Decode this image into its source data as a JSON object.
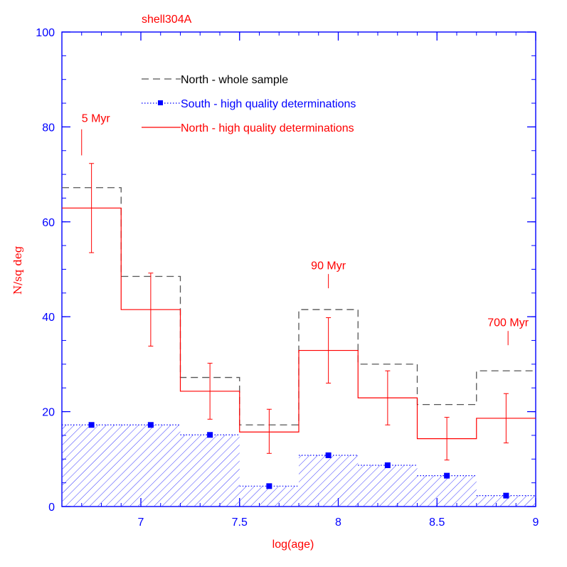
{
  "chart_data": {
    "type": "histogram",
    "title": "shell304A",
    "xlabel": "log(age)",
    "ylabel": "N/sq deg",
    "xlim": [
      6.6,
      9.0
    ],
    "ylim": [
      0,
      100
    ],
    "x_ticks": [
      7,
      7.5,
      8,
      8.5,
      9
    ],
    "x_tick_labels": [
      "7",
      "7.5",
      "8",
      "8.5",
      "9"
    ],
    "y_ticks": [
      0,
      20,
      40,
      60,
      80,
      100
    ],
    "y_tick_labels": [
      "0",
      "20",
      "40",
      "60",
      "80",
      "100"
    ],
    "bin_edges": [
      6.6,
      6.9,
      7.2,
      7.5,
      7.8,
      8.1,
      8.4,
      8.7,
      9.0
    ],
    "bin_centers": [
      6.75,
      7.05,
      7.35,
      7.65,
      7.95,
      8.25,
      8.55,
      8.85
    ],
    "series": [
      {
        "name": "North - whole sample",
        "style": "dashed step",
        "color": "#555555",
        "values": [
          67.2,
          48.5,
          27.2,
          17.2,
          41.5,
          30.0,
          21.5,
          28.6
        ]
      },
      {
        "name": "South - high quality determinations",
        "style": "hatched histogram with square markers",
        "color": "#0000ff",
        "values": [
          17.2,
          17.2,
          15.1,
          4.3,
          10.8,
          8.7,
          6.5,
          2.3
        ]
      },
      {
        "name": "North - high quality determinations",
        "style": "solid step with error bars",
        "color": "#ff0000",
        "values": [
          62.9,
          41.5,
          24.3,
          15.7,
          32.9,
          22.9,
          14.3,
          18.6
        ],
        "error_low": [
          53.5,
          33.8,
          18.4,
          11.2,
          26.0,
          17.2,
          9.8,
          13.4
        ],
        "error_high": [
          72.3,
          49.2,
          30.2,
          20.5,
          39.8,
          28.6,
          18.8,
          23.8
        ]
      }
    ],
    "annotations": [
      {
        "text": "5 Myr",
        "x": 6.7,
        "y": 81,
        "marker_x": 6.7,
        "marker_y_top": 79.5,
        "marker_y_bottom": 74
      },
      {
        "text": "90 Myr",
        "x": 7.95,
        "y": 50,
        "marker_x": 7.95,
        "marker_y_top": 49,
        "marker_y_bottom": 46
      },
      {
        "text": "700 Myr",
        "x": 8.86,
        "y": 38,
        "marker_x": 8.86,
        "marker_y_top": 37,
        "marker_y_bottom": 34
      }
    ],
    "legend": {
      "placement": "top-center",
      "entries": [
        "North - whole sample",
        "South - high quality determinations",
        "North - high quality determinations"
      ]
    },
    "grid": false,
    "colors": {
      "axis": "#0000ff",
      "label": "#ff0000",
      "north_whole": "#555555",
      "south_hq": "#0000ff",
      "north_hq": "#ff0000"
    }
  }
}
